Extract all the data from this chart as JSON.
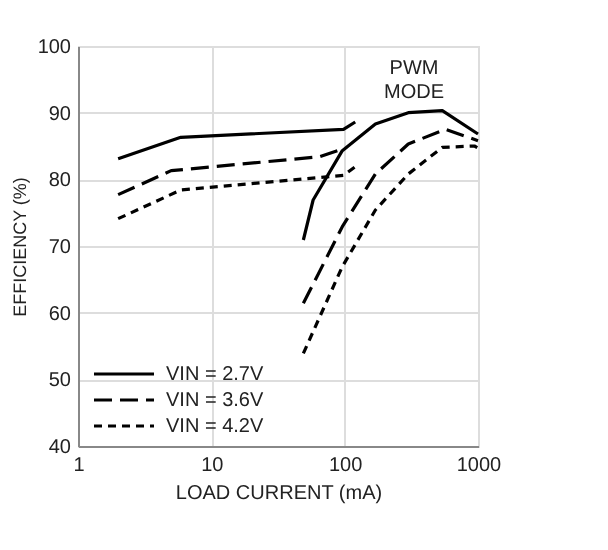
{
  "chart_data": {
    "type": "line",
    "xlabel": "LOAD CURRENT (mA)",
    "ylabel": "EFFICIENCY (%)",
    "log": "x",
    "xlim": [
      1,
      1000
    ],
    "xticks": [
      1,
      10,
      100,
      1000
    ],
    "ylim": [
      40,
      100
    ],
    "yticks": [
      40,
      50,
      60,
      70,
      80,
      90,
      100
    ],
    "grid": true,
    "legend": "bottom left",
    "marker": "none",
    "annotations": [
      "PWM\nMODE"
    ],
    "series": [
      {
        "name": "VIN = 2.7V",
        "color": "#000000",
        "line_style": "solid",
        "x": [
          2,
          5.9,
          98,
          120,
          null,
          49,
          58,
          96,
          170,
          300,
          540,
          1000
        ],
        "values": [
          83.1,
          86.3,
          87.5,
          88.6,
          null,
          70.9,
          76.9,
          84.3,
          88.3,
          90,
          90.3,
          86.8
        ]
      },
      {
        "name": "VIN = 3.6V",
        "color": "#000000",
        "line_style": "dashed",
        "x": [
          2,
          5,
          65,
          98,
          null,
          49,
          96,
          170,
          300,
          570,
          1000
        ],
        "values": [
          77.7,
          81.3,
          83.4,
          84.6,
          null,
          61.4,
          72.9,
          80.8,
          85.3,
          87.5,
          85.8
        ]
      },
      {
        "name": "VIN = 4.2V",
        "color": "#000000",
        "line_style": "dotted",
        "x": [
          2,
          5.9,
          98,
          120,
          null,
          49,
          96,
          170,
          300,
          540,
          940,
          1000
        ],
        "values": [
          74.1,
          78.4,
          80.6,
          81.9,
          null,
          53.9,
          66.9,
          75.4,
          80.8,
          84.8,
          85,
          84.7
        ]
      }
    ]
  }
}
